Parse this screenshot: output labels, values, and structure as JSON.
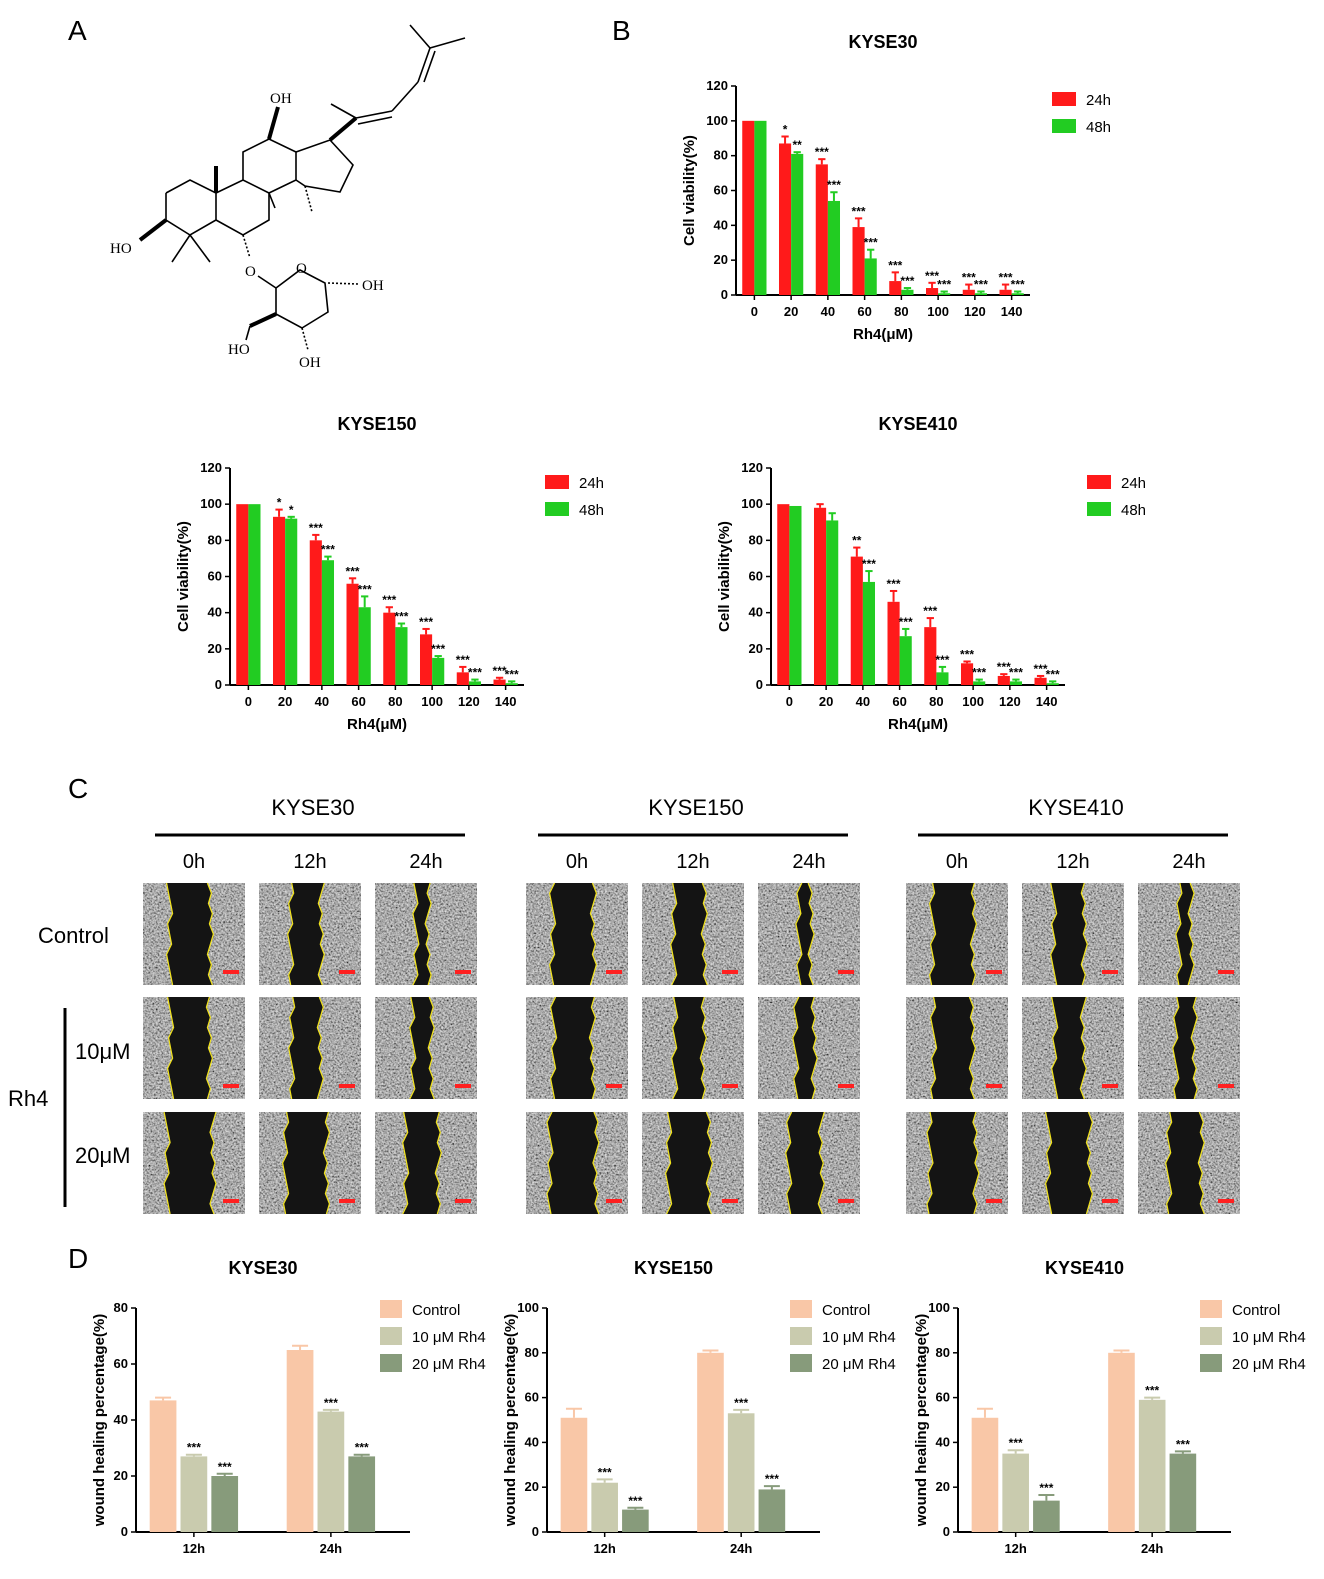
{
  "panels": {
    "A": "A",
    "B": "B",
    "C": "C",
    "D": "D"
  },
  "structure": {
    "labels": [
      "OH",
      "HO",
      "OH",
      "HO",
      "OH"
    ]
  },
  "colors": {
    "red": "#ff1a1a",
    "green": "#22cc22",
    "control": "#f9c7a7",
    "rh4_10": "#c9cbae",
    "rh4_20": "#879b7b",
    "wound_edge": "#f2e31b",
    "scale_bar": "#ff2020"
  },
  "panel_c": {
    "cell_lines": [
      "KYSE30",
      "KYSE150",
      "KYSE410"
    ],
    "times": [
      "0h",
      "12h",
      "24h"
    ],
    "rows": [
      "Control",
      "10μM",
      "20μM"
    ],
    "group_label": "Rh4"
  },
  "chart_data": [
    {
      "type": "bar",
      "panel": "B",
      "title": "KYSE30",
      "xlabel": "Rh4(μM)",
      "ylabel": "Cell viability(%)",
      "ylim": [
        0,
        120
      ],
      "yticks": [
        "0",
        "20",
        "40",
        "60",
        "80",
        "100",
        "120"
      ],
      "categories": [
        "0",
        "20",
        "40",
        "60",
        "80",
        "100",
        "120",
        "140"
      ],
      "legend": "top-right",
      "grid": false,
      "series": [
        {
          "name": "24h",
          "values": [
            100,
            87,
            75,
            39,
            8,
            4,
            3,
            3
          ],
          "errors": [
            0,
            4,
            3,
            5,
            5,
            3,
            3,
            3
          ],
          "stars": [
            "",
            "*",
            "***",
            "***",
            "***",
            "***",
            "***",
            "***"
          ]
        },
        {
          "name": "48h",
          "values": [
            100,
            81,
            54,
            21,
            3,
            1,
            1,
            1
          ],
          "errors": [
            0,
            1,
            5,
            5,
            1,
            1,
            1,
            1
          ],
          "stars": [
            "",
            "**",
            "***",
            "***",
            "***",
            "***",
            "***",
            "***"
          ]
        }
      ]
    },
    {
      "type": "bar",
      "panel": "B",
      "title": "KYSE150",
      "xlabel": "Rh4(μM)",
      "ylabel": "Cell viability(%)",
      "ylim": [
        0,
        120
      ],
      "yticks": [
        "0",
        "20",
        "40",
        "60",
        "80",
        "100",
        "120"
      ],
      "categories": [
        "0",
        "20",
        "40",
        "60",
        "80",
        "100",
        "120",
        "140"
      ],
      "legend": "top-right",
      "grid": false,
      "series": [
        {
          "name": "24h",
          "values": [
            100,
            93,
            80,
            56,
            40,
            28,
            7,
            3
          ],
          "errors": [
            0,
            4,
            3,
            3,
            3,
            3,
            3,
            1
          ],
          "stars": [
            "",
            "*",
            "***",
            "***",
            "***",
            "***",
            "***",
            "***"
          ]
        },
        {
          "name": "48h",
          "values": [
            100,
            92,
            69,
            43,
            32,
            15,
            2,
            1
          ],
          "errors": [
            0,
            1,
            2,
            6,
            2,
            1,
            1,
            1
          ],
          "stars": [
            "",
            "*",
            "***",
            "***",
            "***",
            "***",
            "***",
            "***"
          ]
        }
      ]
    },
    {
      "type": "bar",
      "panel": "B",
      "title": "KYSE410",
      "xlabel": "Rh4(μM)",
      "ylabel": "Cell viability(%)",
      "ylim": [
        0,
        120
      ],
      "yticks": [
        "0",
        "20",
        "40",
        "60",
        "80",
        "100",
        "120"
      ],
      "categories": [
        "0",
        "20",
        "40",
        "60",
        "80",
        "100",
        "120",
        "140"
      ],
      "legend": "top-right",
      "grid": false,
      "series": [
        {
          "name": "24h",
          "values": [
            100,
            98,
            71,
            46,
            32,
            12,
            5,
            4
          ],
          "errors": [
            0,
            2,
            5,
            6,
            5,
            1,
            1,
            1
          ],
          "stars": [
            "",
            "",
            "**",
            "***",
            "***",
            "***",
            "***",
            "***"
          ]
        },
        {
          "name": "48h",
          "values": [
            99,
            91,
            57,
            27,
            7,
            2,
            2,
            1
          ],
          "errors": [
            0,
            4,
            6,
            4,
            3,
            1,
            1,
            1
          ],
          "stars": [
            "",
            "",
            "***",
            "***",
            "***",
            "***",
            "***",
            "***"
          ]
        }
      ]
    },
    {
      "type": "bar",
      "panel": "D",
      "title": "KYSE30",
      "xlabel": "",
      "ylabel": "wound healing percentage(%)",
      "ylim": [
        0,
        80
      ],
      "yticks": [
        "0",
        "20",
        "40",
        "60",
        "80"
      ],
      "categories": [
        "12h",
        "24h"
      ],
      "legend": "top-right",
      "grid": false,
      "series": [
        {
          "name": "Control",
          "values": [
            47,
            65
          ],
          "errors": [
            1,
            1.5
          ],
          "stars": [
            "",
            ""
          ]
        },
        {
          "name": "10 μM Rh4",
          "values": [
            27,
            43
          ],
          "errors": [
            0.6,
            0.6
          ],
          "stars": [
            "***",
            "***"
          ]
        },
        {
          "name": "20 μM Rh4",
          "values": [
            20,
            27
          ],
          "errors": [
            0.8,
            0.6
          ],
          "stars": [
            "***",
            "***"
          ]
        }
      ]
    },
    {
      "type": "bar",
      "panel": "D",
      "title": "KYSE150",
      "xlabel": "",
      "ylabel": "wound healing percentage(%)",
      "ylim": [
        0,
        100
      ],
      "yticks": [
        "0",
        "20",
        "40",
        "60",
        "80",
        "100"
      ],
      "categories": [
        "12h",
        "24h"
      ],
      "legend": "top-right",
      "grid": false,
      "series": [
        {
          "name": "Control",
          "values": [
            51,
            80
          ],
          "errors": [
            4,
            1
          ],
          "stars": [
            "",
            ""
          ]
        },
        {
          "name": "10 μM Rh4",
          "values": [
            22,
            53
          ],
          "errors": [
            1.5,
            1.5
          ],
          "stars": [
            "***",
            "***"
          ]
        },
        {
          "name": "20 μM Rh4",
          "values": [
            10,
            19
          ],
          "errors": [
            0.8,
            1.5
          ],
          "stars": [
            "***",
            "***"
          ]
        }
      ]
    },
    {
      "type": "bar",
      "panel": "D",
      "title": "KYSE410",
      "xlabel": "",
      "ylabel": "wound healing percentage(%)",
      "ylim": [
        0,
        100
      ],
      "yticks": [
        "0",
        "20",
        "40",
        "60",
        "80",
        "100"
      ],
      "categories": [
        "12h",
        "24h"
      ],
      "legend": "top-right",
      "grid": false,
      "series": [
        {
          "name": "Control",
          "values": [
            51,
            80
          ],
          "errors": [
            4,
            1
          ],
          "stars": [
            "",
            ""
          ]
        },
        {
          "name": "10 μM Rh4",
          "values": [
            35,
            59
          ],
          "errors": [
            1.5,
            1
          ],
          "stars": [
            "***",
            "***"
          ]
        },
        {
          "name": "20 μM Rh4",
          "values": [
            14,
            35
          ],
          "errors": [
            2.5,
            1
          ],
          "stars": [
            "***",
            "***"
          ]
        }
      ]
    }
  ]
}
